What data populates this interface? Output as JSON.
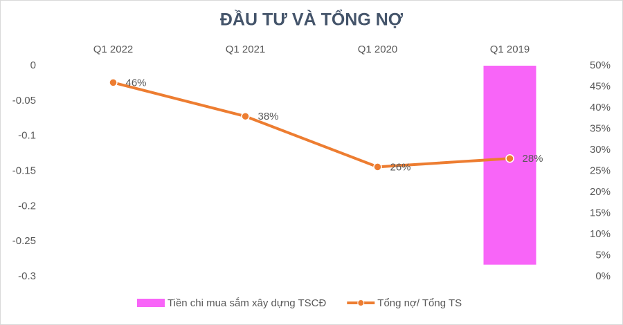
{
  "chart_data": {
    "type": "combo",
    "title": "ĐẦU TƯ VÀ TỔNG NỢ",
    "categories": [
      "Q1 2022",
      "Q1 2021",
      "Q1 2020",
      "Q1 2019"
    ],
    "series": [
      {
        "name": "Tiền chi mua sắm xây dựng TSCĐ",
        "type": "bar",
        "color": "#f865f8",
        "values": [
          0,
          0,
          0,
          -0.283
        ]
      },
      {
        "name": "Tổng nợ/ Tổng TS",
        "type": "line",
        "axis": "y2",
        "color": "#ed7d31",
        "values": [
          46,
          38,
          26,
          28
        ],
        "value_labels": [
          "46%",
          "38%",
          "26%",
          "28%"
        ]
      }
    ],
    "ylim": [
      -0.3,
      0
    ],
    "yticks": [
      0,
      -0.05,
      -0.1,
      -0.15,
      -0.2,
      -0.25,
      -0.3
    ],
    "y2lim": [
      0,
      50
    ],
    "y2ticks": [
      {
        "value": 0,
        "label": "0%"
      },
      {
        "value": 5,
        "label": "5%"
      },
      {
        "value": 10,
        "label": "10%"
      },
      {
        "value": 15,
        "label": "15%"
      },
      {
        "value": 20,
        "label": "20%"
      },
      {
        "value": 25,
        "label": "25%"
      },
      {
        "value": 30,
        "label": "30%"
      },
      {
        "value": 35,
        "label": "35%"
      },
      {
        "value": 40,
        "label": "40%"
      },
      {
        "value": 45,
        "label": "45%"
      },
      {
        "value": 50,
        "label": "50%"
      }
    ],
    "grid": false,
    "legend": "bottom"
  }
}
